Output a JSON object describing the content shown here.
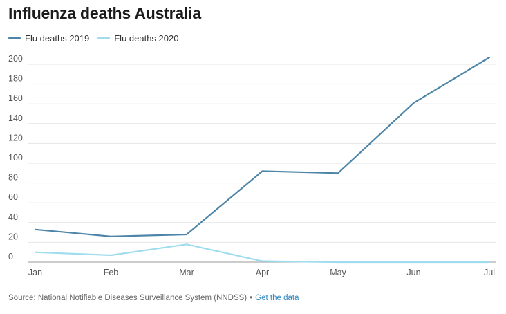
{
  "header": {
    "title": "Influenza deaths Australia"
  },
  "footer": {
    "source": "Source: National Notifiable Diseases Surveillance System (NNDSS)",
    "separator": "•",
    "link_label": "Get the data"
  },
  "chart_data": {
    "type": "line",
    "title": "Influenza deaths Australia",
    "xlabel": "",
    "ylabel": "",
    "categories": [
      "Jan",
      "Feb",
      "Mar",
      "Apr",
      "May",
      "Jun",
      "Jul"
    ],
    "ylim": [
      0,
      200
    ],
    "yticks": [
      0,
      20,
      40,
      60,
      80,
      100,
      120,
      140,
      160,
      180,
      200
    ],
    "grid": true,
    "legend_position": "top-left",
    "series": [
      {
        "name": "Flu deaths 2019",
        "color": "#4d84a8",
        "values": [
          33,
          26,
          28,
          92,
          90,
          161,
          207
        ]
      },
      {
        "name": "Flu deaths 2020",
        "color": "#9fdcee",
        "values": [
          10,
          7,
          18,
          1,
          0,
          0,
          0
        ]
      }
    ]
  }
}
